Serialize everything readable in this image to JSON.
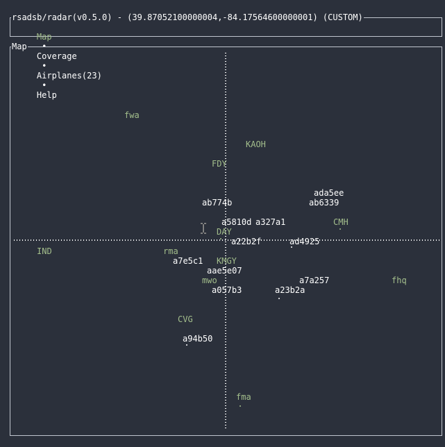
{
  "window": {
    "title": "rsadsb/radar(v0.5.0) - (39.87052100000004,-84.17564600000001) (CUSTOM)"
  },
  "tabs": [
    {
      "label": "Map",
      "active": true
    },
    {
      "label": "Coverage",
      "active": false
    },
    {
      "label": "Airplanes(23)",
      "active": false
    },
    {
      "label": "Help",
      "active": false
    }
  ],
  "tab_separator": "•",
  "map": {
    "title": "Map",
    "colors": {
      "airplane": "#ffffff",
      "location": "#a3be8c",
      "axis": "#ffffff",
      "background": "#2b303b"
    },
    "locations": [
      {
        "label": "fwa"
      },
      {
        "label": "KAOH"
      },
      {
        "label": "FDY"
      },
      {
        "label": "CMH"
      },
      {
        "label": "DAY"
      },
      {
        "label": "IND"
      },
      {
        "label": "rma"
      },
      {
        "label": "KMGY"
      },
      {
        "label": "mwo"
      },
      {
        "label": "fhq"
      },
      {
        "label": "CVG"
      },
      {
        "label": "fma"
      }
    ],
    "airplanes": [
      {
        "label": "ada5ee"
      },
      {
        "label": "ab774b"
      },
      {
        "label": "ab6339"
      },
      {
        "label": "a5810d"
      },
      {
        "label": "a327a1"
      },
      {
        "label": "a22b2f"
      },
      {
        "label": "ad4925"
      },
      {
        "label": "a7e5c1"
      },
      {
        "label": "aae5e07"
      },
      {
        "label": "a7a257"
      },
      {
        "label": "a057b3"
      },
      {
        "label": "a23b2a"
      },
      {
        "label": "a94b50"
      }
    ]
  }
}
